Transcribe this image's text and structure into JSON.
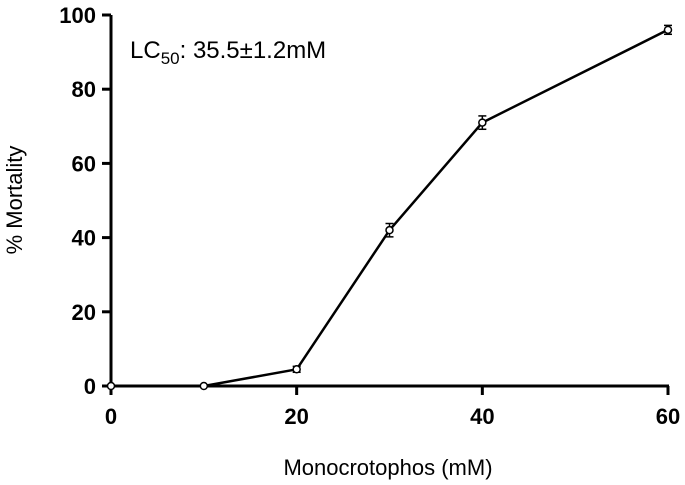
{
  "chart_data": {
    "type": "line",
    "xlabel": "Monocrotophos (mM)",
    "ylabel": "% Mortality",
    "xlim": [
      0,
      60
    ],
    "ylim": [
      0,
      100
    ],
    "x_ticks": [
      0,
      20,
      40,
      60
    ],
    "y_ticks": [
      0,
      20,
      40,
      60,
      80,
      100
    ],
    "x_tick_labels": [
      "0",
      "20",
      "40",
      "60"
    ],
    "y_tick_labels": [
      "0",
      "20",
      "40",
      "60",
      "80",
      "100"
    ],
    "grid": false,
    "series": [
      {
        "x": [
          0,
          10,
          20,
          30,
          40,
          60
        ],
        "y": [
          0,
          0,
          4.5,
          42,
          71,
          96
        ],
        "error": [
          0,
          0,
          0.8,
          1.8,
          1.8,
          1.2
        ]
      }
    ],
    "annotation": {
      "prefix": "LC",
      "subscript": "50",
      "suffix": ": 35.5±1.2mM"
    }
  }
}
